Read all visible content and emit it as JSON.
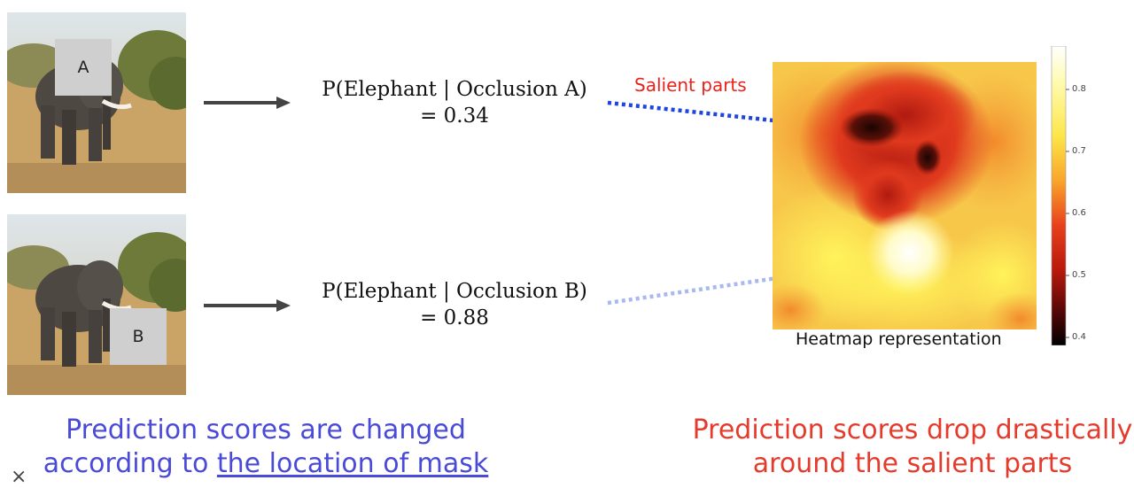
{
  "image_a": {
    "mask_label": "A"
  },
  "image_b": {
    "mask_label": "B"
  },
  "prob_a": {
    "line1": "P(Elephant | Occlusion A)",
    "line2": "=  0.34"
  },
  "prob_b": {
    "line1": "P(Elephant | Occlusion B)",
    "line2": "=  0.88"
  },
  "salient_label": "Salient parts",
  "heatmap": {
    "caption": "Heatmap representation",
    "colorbar_ticks": [
      "0.8",
      "0.7",
      "0.6",
      "0.5",
      "0.4"
    ]
  },
  "caption_left": {
    "line1": "Prediction scores are changed",
    "line2_prefix": "according to ",
    "line2_link": "the location of mask"
  },
  "caption_right": {
    "line1": "Prediction scores drop drastically",
    "line2": "around the salient parts"
  },
  "corner_mark": "×",
  "colors": {
    "arrow_dark": "#444444",
    "arrow_blue": "#1f44e0",
    "arrow_light_blue": "#a8b8f0",
    "caption_left": "#4a4ad8",
    "caption_right": "#e43b2c"
  }
}
